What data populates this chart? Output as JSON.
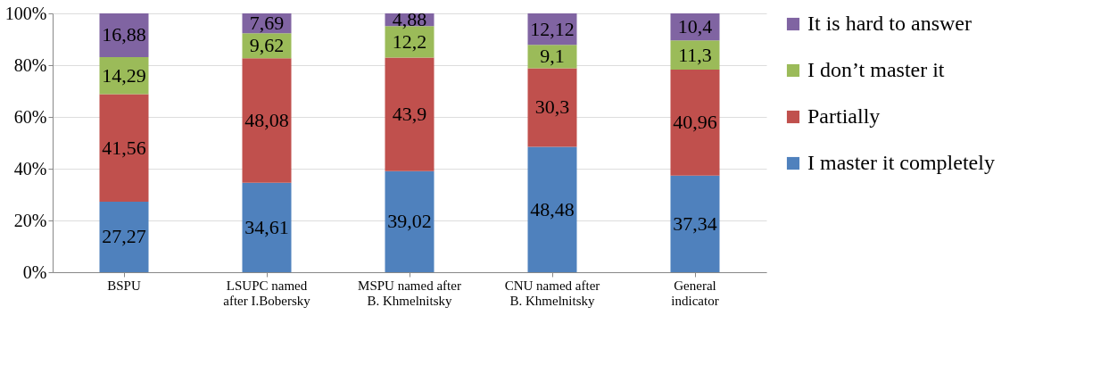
{
  "chart_data": {
    "type": "bar",
    "stacked": true,
    "categories": [
      "BSPU",
      "LSUPC named after I.Bobersky",
      "MSPU named after B. Khmelnitsky",
      "CNU named after B. Khmelnitsky",
      "General indicator"
    ],
    "series": [
      {
        "name": "I master it completely",
        "color": "#4f81bd",
        "values": [
          27.27,
          34.61,
          39.02,
          48.48,
          37.34
        ],
        "value_labels": [
          "27,27",
          "34,61",
          "39,02",
          "48,48",
          "37,34"
        ]
      },
      {
        "name": "Partially",
        "color": "#c0504d",
        "values": [
          41.56,
          48.08,
          43.9,
          30.3,
          40.96
        ],
        "value_labels": [
          "41,56",
          "48,08",
          "43,9",
          "30,3",
          "40,96"
        ]
      },
      {
        "name": "I don’t master it",
        "color": "#9bbb59",
        "values": [
          14.29,
          9.62,
          12.2,
          9.1,
          11.3
        ],
        "value_labels": [
          "14,29",
          "9,62",
          "12,2",
          "9,1",
          "11,3"
        ]
      },
      {
        "name": "It is hard to answer",
        "color": "#8064a2",
        "values": [
          16.88,
          7.69,
          4.88,
          12.12,
          10.4
        ],
        "value_labels": [
          "16,88",
          "7,69",
          "4,88",
          "12,12",
          "10,4"
        ]
      }
    ],
    "ylim": [
      0,
      100
    ],
    "yticks": [
      {
        "value": 0,
        "label": "0%"
      },
      {
        "value": 20,
        "label": "20%"
      },
      {
        "value": 40,
        "label": "40%"
      },
      {
        "value": 60,
        "label": "60%"
      },
      {
        "value": 80,
        "label": "80%"
      },
      {
        "value": 100,
        "label": "100%"
      }
    ],
    "grid": "y",
    "legend": "right"
  }
}
